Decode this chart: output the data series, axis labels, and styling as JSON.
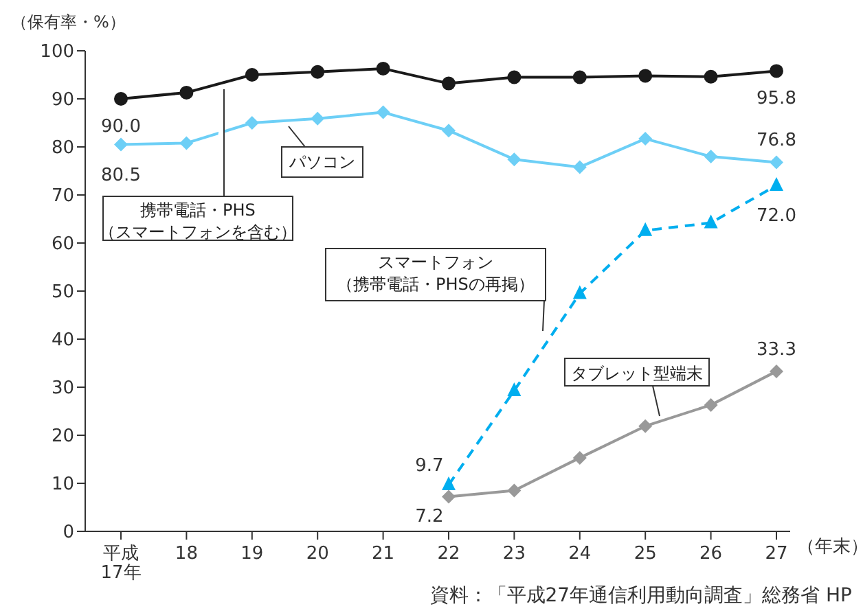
{
  "chart_data": {
    "type": "line",
    "ylabel": "（保有率・%）",
    "xlabel": "（年末）",
    "categories": [
      "平成\n17年",
      "18",
      "19",
      "20",
      "21",
      "22",
      "23",
      "24",
      "25",
      "26",
      "27"
    ],
    "ylim": [
      0,
      100
    ],
    "yticks": [
      0,
      10,
      20,
      30,
      40,
      50,
      60,
      70,
      80,
      90,
      100
    ],
    "grid": false,
    "legend": false,
    "series": [
      {
        "name": "携帯電話・PHS（スマートフォンを含む）",
        "color": "#1a1a1a",
        "marker": "circle",
        "line_style": "solid",
        "values": [
          90.0,
          91.3,
          95.0,
          95.6,
          96.3,
          93.2,
          94.5,
          94.5,
          94.8,
          94.6,
          95.8
        ],
        "value_labels": [
          "90.0",
          null,
          null,
          null,
          null,
          null,
          null,
          null,
          null,
          null,
          "95.8"
        ]
      },
      {
        "name": "パソコン",
        "color": "#6dcff6",
        "marker": "diamond",
        "line_style": "solid",
        "values": [
          80.5,
          80.8,
          85.0,
          85.9,
          87.2,
          83.4,
          77.4,
          75.8,
          81.7,
          78.0,
          76.8
        ],
        "value_labels": [
          "80.5",
          null,
          null,
          null,
          null,
          null,
          null,
          null,
          null,
          null,
          "76.8"
        ]
      },
      {
        "name": "スマートフォン（携帯電話・PHSの再掲）",
        "color": "#00aeef",
        "marker": "triangle",
        "line_style": "dashed",
        "values": [
          null,
          null,
          null,
          null,
          null,
          9.7,
          29.3,
          49.5,
          62.6,
          64.2,
          72.0
        ],
        "value_labels": [
          null,
          null,
          null,
          null,
          null,
          "9.7",
          null,
          null,
          null,
          null,
          "72.0"
        ]
      },
      {
        "name": "タブレット型端末",
        "color": "#999999",
        "marker": "diamond",
        "line_style": "solid",
        "values": [
          null,
          null,
          null,
          null,
          null,
          7.2,
          8.5,
          15.3,
          21.9,
          26.3,
          33.3
        ],
        "value_labels": [
          null,
          null,
          null,
          null,
          null,
          "7.2",
          null,
          null,
          null,
          null,
          "33.3"
        ]
      }
    ],
    "annotations": [
      "資料：「平成27年通信利用動向調査」総務省 HP"
    ]
  }
}
